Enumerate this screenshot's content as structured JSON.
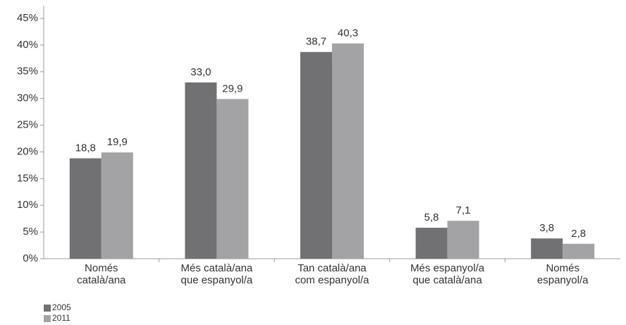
{
  "chart_data": {
    "type": "bar",
    "categories": [
      "Només\ncatalà/ana",
      "Més català/ana\nque espanyol/a",
      "Tan català/ana\ncom espanyol/a",
      "Més espanyol/a\nque català/ana",
      "Només\nespanyol/a"
    ],
    "series": [
      {
        "name": "2005",
        "color": "#717174",
        "values": [
          18.8,
          33.0,
          38.7,
          5.8,
          3.8
        ],
        "value_labels": [
          "18,8",
          "33,0",
          "38,7",
          "5,8",
          "3,8"
        ]
      },
      {
        "name": "2011",
        "color": "#a3a3a5",
        "values": [
          19.9,
          29.9,
          40.3,
          7.1,
          2.8
        ],
        "value_labels": [
          "19,9",
          "29,9",
          "40,3",
          "7,1",
          "2,8"
        ]
      }
    ],
    "ylim": [
      0,
      45
    ],
    "yticks": [
      {
        "value": 0,
        "label": "0%"
      },
      {
        "value": 5,
        "label": "5%"
      },
      {
        "value": 10,
        "label": "10%"
      },
      {
        "value": 15,
        "label": "15%"
      },
      {
        "value": 20,
        "label": "20%"
      },
      {
        "value": 25,
        "label": "25%"
      },
      {
        "value": 30,
        "label": "30%"
      },
      {
        "value": 35,
        "label": "35%"
      },
      {
        "value": 40,
        "label": "40%"
      },
      {
        "value": 45,
        "label": "45%"
      }
    ],
    "grid": false,
    "legend": "bottom-left"
  }
}
